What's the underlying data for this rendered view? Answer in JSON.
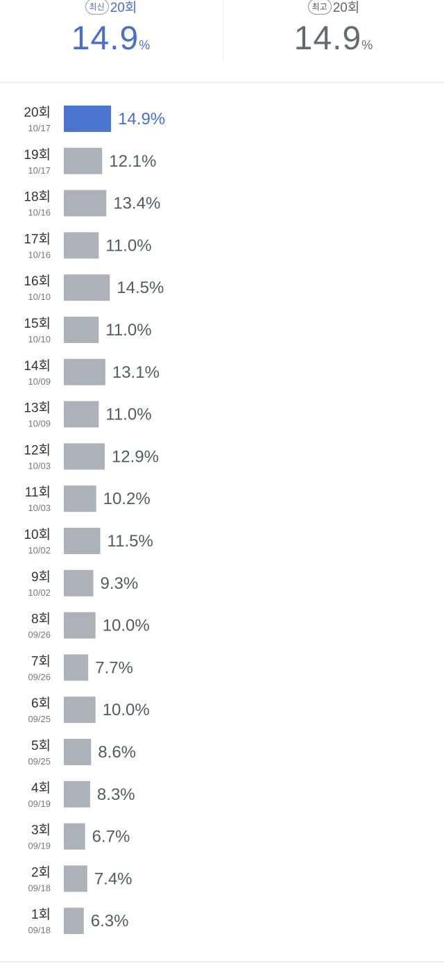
{
  "summary": {
    "latest": {
      "badge": "최신",
      "round": "20회",
      "value": "14.9",
      "unit": "%"
    },
    "best": {
      "badge": "최고",
      "round": "20회",
      "value": "14.9",
      "unit": "%"
    }
  },
  "colors": {
    "highlight": "#4a74cf",
    "bar": "#adb2b9",
    "highlight_text": "#4a6fc7",
    "text": "#555a60"
  },
  "chart_data": {
    "type": "bar",
    "orientation": "horizontal",
    "categories": [
      "20회",
      "19회",
      "18회",
      "17회",
      "16회",
      "15회",
      "14회",
      "13회",
      "12회",
      "11회",
      "10회",
      "9회",
      "8회",
      "7회",
      "6회",
      "5회",
      "4회",
      "3회",
      "2회",
      "1회"
    ],
    "dates": [
      "10/17",
      "10/17",
      "10/16",
      "10/16",
      "10/10",
      "10/10",
      "10/09",
      "10/09",
      "10/03",
      "10/03",
      "10/02",
      "10/02",
      "09/26",
      "09/26",
      "09/25",
      "09/25",
      "09/19",
      "09/19",
      "09/18",
      "09/18"
    ],
    "values": [
      14.9,
      12.1,
      13.4,
      11.0,
      14.5,
      11.0,
      13.1,
      11.0,
      12.9,
      10.2,
      11.5,
      9.3,
      10.0,
      7.7,
      10.0,
      8.6,
      8.3,
      6.7,
      7.4,
      6.3
    ],
    "labels": [
      "14.9%",
      "12.1%",
      "13.4%",
      "11.0%",
      "14.5%",
      "11.0%",
      "13.1%",
      "11.0%",
      "12.9%",
      "10.2%",
      "11.5%",
      "9.3%",
      "10.0%",
      "7.7%",
      "10.0%",
      "8.6%",
      "8.3%",
      "6.7%",
      "7.4%",
      "6.3%"
    ],
    "highlight_index": 0,
    "grid": false
  }
}
